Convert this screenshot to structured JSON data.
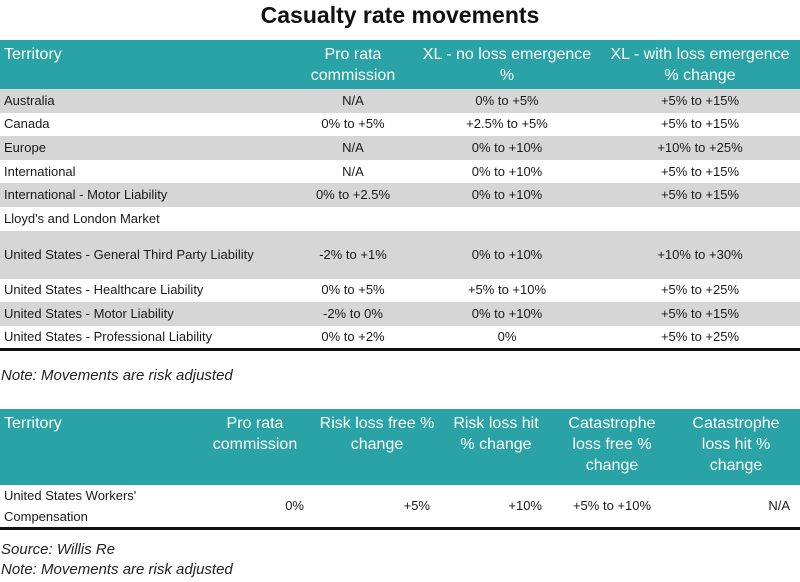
{
  "title": "Casualty rate movements",
  "table1": {
    "headers": [
      "Territory",
      "Pro rata commission",
      "XL - no loss emergence %",
      "XL - with loss emergence % change"
    ],
    "rows": [
      [
        "Australia",
        "N/A",
        "0% to +5%",
        "+5% to +15%"
      ],
      [
        "Canada",
        "0% to +5%",
        "+2.5% to +5%",
        "+5% to +15%"
      ],
      [
        "Europe",
        "N/A",
        "0% to +10%",
        "+10% to +25%"
      ],
      [
        "International",
        "N/A",
        "0% to +10%",
        "+5% to +15%"
      ],
      [
        "International - Motor Liability",
        "0% to +2.5%",
        "0% to +10%",
        "+5% to +15%"
      ],
      [
        "Lloyd's and London Market",
        "",
        "",
        ""
      ],
      [
        "United States - General Third Party Liability",
        "-2% to +1%",
        "0% to +10%",
        "+10% to +30%"
      ],
      [
        "United States - Healthcare Liability",
        "0% to +5%",
        "+5% to +10%",
        "+5% to +25%"
      ],
      [
        "United States - Motor Liability",
        "-2% to 0%",
        "0% to +10%",
        "+5% to +15%"
      ],
      [
        "United States - Professional Liability",
        "0% to +2%",
        "0%",
        "+5% to +25%"
      ]
    ]
  },
  "note1": "Note: Movements are risk adjusted",
  "table2": {
    "headers": [
      "Territory",
      "Pro rata commission",
      "Risk loss free % change",
      "Risk loss hit % change",
      "Catastrophe loss free % change",
      "Catastrophe loss hit % change"
    ],
    "rows": [
      [
        "United States Workers' Compensation",
        "0%",
        "+5%",
        "+10%",
        "+5% to +10%",
        "N/A"
      ]
    ]
  },
  "source": "Source: Willis Re",
  "note2": "Note: Movements are risk adjusted",
  "colors": {
    "header_bg": "#29a3a6",
    "stripe_bg": "#d6d6d6",
    "header_text": "#ffffff"
  }
}
